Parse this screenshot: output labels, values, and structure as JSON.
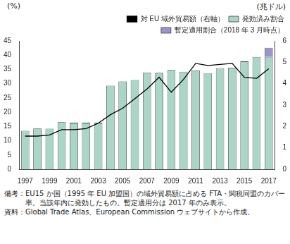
{
  "chart_data": {
    "type": "bar",
    "y_label": "(%)",
    "y2_label": "(兆ドル)",
    "categories": [
      "1997",
      null,
      "1999",
      null,
      "2001",
      null,
      "2003",
      null,
      "2005",
      null,
      "2007",
      null,
      "2009",
      null,
      "2011",
      null,
      "2013",
      null,
      "2015",
      null,
      "2017"
    ],
    "series": [
      {
        "name": "発効済み割合",
        "type": "bar",
        "color": "#a9d6c6",
        "values": [
          13.5,
          14.3,
          14.2,
          16.5,
          16.3,
          16.3,
          16.3,
          29.3,
          30.8,
          31.3,
          33.8,
          33.8,
          34.8,
          34.2,
          34.6,
          33.7,
          35.5,
          35.6,
          37.8,
          39.4,
          39.4
        ]
      },
      {
        "name": "暫定適用割合（2018 年 3 月時点）",
        "type": "bar",
        "color": "#9d93cc",
        "values": [
          null,
          null,
          null,
          null,
          null,
          null,
          null,
          null,
          null,
          null,
          null,
          null,
          null,
          null,
          null,
          null,
          null,
          null,
          null,
          null,
          3.2
        ]
      },
      {
        "name": "対 EU 域外貿易額（右軸）",
        "type": "line",
        "color": "#000000",
        "axis": "y2",
        "values": [
          1.55,
          1.55,
          1.6,
          1.85,
          1.85,
          1.9,
          2.15,
          2.55,
          2.85,
          3.3,
          3.75,
          4.3,
          3.6,
          4.2,
          4.95,
          4.85,
          4.9,
          4.95,
          4.3,
          4.25,
          4.7
        ]
      }
    ],
    "stacked": true,
    "ylim": [
      0,
      45
    ],
    "yticks": [
      0,
      5,
      10,
      15,
      20,
      25,
      30,
      35,
      40,
      45
    ],
    "y2lim": [
      0,
      6
    ],
    "y2ticks": [
      0,
      1,
      2,
      3,
      4,
      5,
      6
    ],
    "grid": false,
    "legend": "top",
    "notes": [
      "備考：EU15 か国（1995 年 EU 加盟国）の域外貿易額に占める FTA・関税同盟のカバー率。当該年内に発効したもの。暫定適用分は 2017 年のみ表示。",
      "資料：Global Trade Atlas、European Commission ウェブサイトから作成。"
    ]
  }
}
